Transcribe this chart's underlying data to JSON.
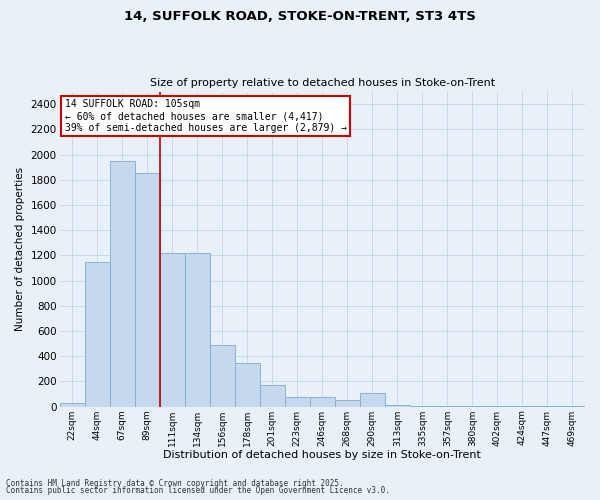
{
  "title1": "14, SUFFOLK ROAD, STOKE-ON-TRENT, ST3 4TS",
  "title2": "Size of property relative to detached houses in Stoke-on-Trent",
  "xlabel": "Distribution of detached houses by size in Stoke-on-Trent",
  "ylabel": "Number of detached properties",
  "categories": [
    "22sqm",
    "44sqm",
    "67sqm",
    "89sqm",
    "111sqm",
    "134sqm",
    "156sqm",
    "178sqm",
    "201sqm",
    "223sqm",
    "246sqm",
    "268sqm",
    "290sqm",
    "313sqm",
    "335sqm",
    "357sqm",
    "380sqm",
    "402sqm",
    "424sqm",
    "447sqm",
    "469sqm"
  ],
  "values": [
    30,
    1150,
    1950,
    1850,
    1220,
    1220,
    490,
    350,
    170,
    75,
    75,
    50,
    110,
    10,
    5,
    5,
    2,
    2,
    2,
    2,
    2
  ],
  "bar_color": "#c5d8ee",
  "bar_edge_color": "#7aaed4",
  "vline_color": "#bb0000",
  "annotation_text": "14 SUFFOLK ROAD: 105sqm\n← 60% of detached houses are smaller (4,417)\n39% of semi-detached houses are larger (2,879) →",
  "annotation_box_color": "#ffffff",
  "annotation_box_edge": "#cc0000",
  "grid_color": "#c8d8e8",
  "bg_color": "#e8f0f8",
  "footer1": "Contains HM Land Registry data © Crown copyright and database right 2025.",
  "footer2": "Contains public sector information licensed under the Open Government Licence v3.0.",
  "ylim": [
    0,
    2500
  ],
  "yticks": [
    0,
    200,
    400,
    600,
    800,
    1000,
    1200,
    1400,
    1600,
    1800,
    2000,
    2200,
    2400
  ],
  "vline_x_idx": 3.5,
  "figwidth": 6.0,
  "figheight": 5.0,
  "dpi": 100
}
